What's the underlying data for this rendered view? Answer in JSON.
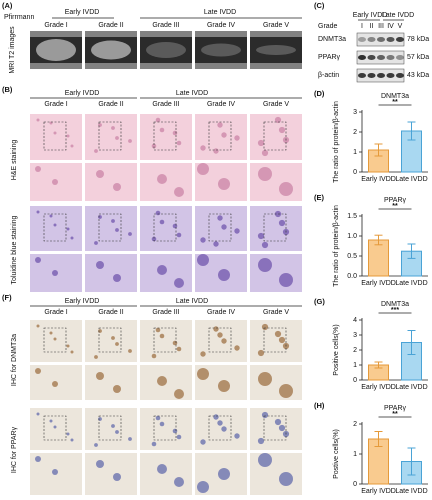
{
  "figure": {
    "panel_a": {
      "label": "(A)",
      "scale_label": "Pfirrmann",
      "groups": [
        "Early IVDD",
        "Late IVDD"
      ],
      "grades": [
        "Grade I",
        "Grade II",
        "Grade III",
        "Grade IV",
        "Grade V"
      ],
      "row_label": "MRI T2 images"
    },
    "panel_b": {
      "label": "(B)",
      "groups": [
        "Early IVDD",
        "Late IVDD"
      ],
      "grades": [
        "Grade I",
        "Grade II",
        "Grade III",
        "Grade IV",
        "Grade V"
      ],
      "row_labels": [
        "H&E staining",
        "Toluidine blue staining"
      ]
    },
    "panel_c": {
      "label": "(C)",
      "groups": [
        "Early IVDD",
        "Late IVDD"
      ],
      "grade_label": "Grade",
      "grades": [
        "I",
        "II",
        "III",
        "IV",
        "V"
      ],
      "rows": [
        {
          "name": "DNMT3a",
          "size": "78 kDa"
        },
        {
          "name": "PPARγ",
          "size": "57 kDa"
        },
        {
          "name": "β-actin",
          "size": "43 kDa"
        }
      ]
    },
    "panel_f": {
      "label": "(F)",
      "groups": [
        "Early IVDD",
        "Late IVDD"
      ],
      "grades": [
        "Grade I",
        "Grade II",
        "Grade III",
        "Grade IV",
        "Grade V"
      ],
      "row_labels": [
        "IHC for DNMT3a",
        "IHC for PPARγ"
      ]
    }
  },
  "chart_data": [
    {
      "type": "bar",
      "panel": "(D)",
      "title": "DNMT3a",
      "y_label": "The ratio of protein/β-actin",
      "categories": [
        "Early IVDD",
        "Late IVDD"
      ],
      "values": [
        1.1,
        2.05
      ],
      "errors": [
        0.3,
        0.45
      ],
      "colors": [
        "#f9cb8f",
        "#a9d8f1"
      ],
      "edge_colors": [
        "#e59a3a",
        "#4aa3d6"
      ],
      "significance": "**",
      "ylim": [
        0,
        3
      ],
      "yticks": [
        0,
        1,
        2,
        3
      ]
    },
    {
      "type": "bar",
      "panel": "(E)",
      "title": "PPARγ",
      "y_label": "The ratio of protein/β-actin",
      "categories": [
        "Early IVDD",
        "Late IVDD"
      ],
      "values": [
        0.9,
        0.62
      ],
      "errors": [
        0.12,
        0.18
      ],
      "colors": [
        "#f9cb8f",
        "#a9d8f1"
      ],
      "edge_colors": [
        "#e59a3a",
        "#4aa3d6"
      ],
      "significance": "**",
      "ylim": [
        0,
        1.5
      ],
      "yticks": [
        {
          "value": 0,
          "label": "0.0"
        },
        0.5,
        {
          "value": 1,
          "label": "1.0"
        },
        1.5
      ]
    },
    {
      "type": "bar",
      "panel": "(G)",
      "title": "DNMT3a",
      "y_label": "Positive cells(%)",
      "categories": [
        "Early IVDD",
        "Late IVDD"
      ],
      "values": [
        1.0,
        2.5
      ],
      "errors": [
        0.2,
        0.8
      ],
      "colors": [
        "#f9cb8f",
        "#a9d8f1"
      ],
      "edge_colors": [
        "#e59a3a",
        "#4aa3d6"
      ],
      "significance": "***",
      "ylim": [
        0,
        4
      ],
      "yticks": [
        0,
        1,
        2,
        3,
        4
      ]
    },
    {
      "type": "bar",
      "panel": "(H)",
      "title": "PPARγ",
      "y_label": "Postive cells(%)",
      "categories": [
        "Early IVDD",
        "Late IVDD"
      ],
      "values": [
        1.5,
        0.75
      ],
      "errors": [
        0.25,
        0.45
      ],
      "colors": [
        "#f9cb8f",
        "#a9d8f1"
      ],
      "edge_colors": [
        "#e59a3a",
        "#4aa3d6"
      ],
      "significance": "**",
      "ylim": [
        0,
        2
      ],
      "yticks": [
        0,
        1,
        2
      ]
    }
  ]
}
